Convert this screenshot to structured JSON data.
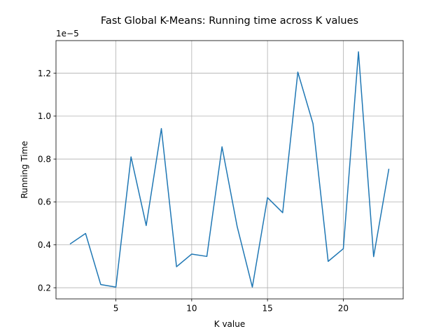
{
  "chart_data": {
    "type": "line",
    "title": "Fast Global K-Means: Running time across K values",
    "xlabel": "K value",
    "ylabel": "Running Time",
    "y_offset_text": "1e−5",
    "grid": true,
    "xlim": [
      1.05,
      23.95
    ],
    "ylim": [
      0.148,
      1.352
    ],
    "x_ticks": [
      5,
      10,
      15,
      20
    ],
    "x_tick_labels": [
      "5",
      "10",
      "15",
      "20"
    ],
    "y_ticks": [
      0.2,
      0.4,
      0.6,
      0.8,
      1.0,
      1.2
    ],
    "y_tick_labels": [
      "0.2",
      "0.4",
      "0.6",
      "0.8",
      "1.0",
      "1.2"
    ],
    "series": [
      {
        "color": "#1f77b4",
        "x": [
          2,
          3,
          4,
          5,
          6,
          7,
          8,
          9,
          10,
          11,
          12,
          13,
          14,
          15,
          16,
          17,
          18,
          19,
          20,
          21,
          22,
          23
        ],
        "values": [
          0.405,
          0.453,
          0.215,
          0.203,
          0.81,
          0.49,
          0.942,
          0.298,
          0.357,
          0.346,
          0.857,
          0.485,
          0.203,
          0.62,
          0.55,
          1.205,
          0.965,
          0.323,
          0.382,
          1.3,
          0.345,
          0.752
        ]
      }
    ]
  }
}
